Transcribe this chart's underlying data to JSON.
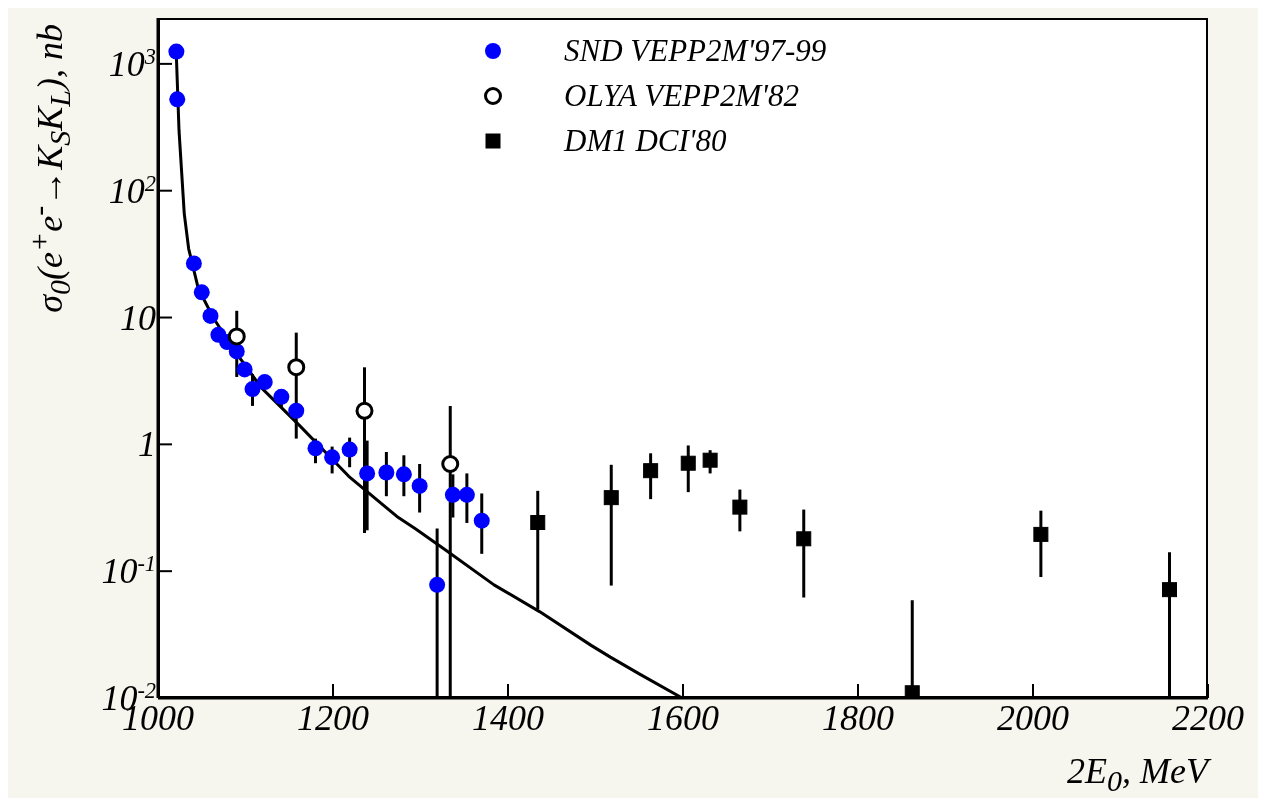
{
  "chart_data": {
    "type": "scatter",
    "xlabel": "2E$_{0}$,  MeV",
    "ylabel": "σ$_{0}$(e$^{+}$e$^{-}$→K$_{S}$K$_{L}$),  nb",
    "log": "y",
    "xlim": [
      1000,
      2200
    ],
    "xticks": [
      1000,
      1200,
      1400,
      1600,
      1800,
      2000,
      2200
    ],
    "ylim": [
      0.01,
      2300
    ],
    "yticks": [
      {
        "value": 0.01,
        "label": "10$^{-2}$"
      },
      {
        "value": 0.1,
        "label": "10$^{-1}$"
      },
      {
        "value": 1,
        "label": "1"
      },
      {
        "value": 10,
        "label": "10"
      },
      {
        "value": 100,
        "label": "10$^{2}$"
      },
      {
        "value": 1000,
        "label": "10$^{3}$"
      }
    ],
    "legend": "top",
    "series": [
      {
        "name": "SND VEPP2M'97-99",
        "marker": "circle",
        "color": "#0000ff",
        "x": [
          1021,
          1022,
          1041,
          1050,
          1060,
          1069,
          1079,
          1090,
          1099,
          1108,
          1122,
          1141,
          1158,
          1180,
          1199,
          1219,
          1239,
          1261,
          1281,
          1299,
          1319,
          1337,
          1353,
          1370
        ],
        "values": [
          1250,
          525,
          26.7,
          15.8,
          10.3,
          7.3,
          6.4,
          5.4,
          3.9,
          2.73,
          3.1,
          2.37,
          1.84,
          0.93,
          0.79,
          0.91,
          0.59,
          0.6,
          0.58,
          0.47,
          0.078,
          0.4,
          0.4,
          0.25
        ],
        "errors": [
          null,
          null,
          null,
          null,
          null,
          null,
          null,
          null,
          null,
          [
            2.01,
            3.58
          ],
          null,
          [
            1.94,
            2.73
          ],
          null,
          [
            0.71,
            1.11
          ],
          [
            0.59,
            0.96
          ],
          [
            0.66,
            1.13
          ],
          [
            0.21,
            1.07
          ],
          [
            0.39,
            0.87
          ],
          [
            0.39,
            0.82
          ],
          [
            0.29,
            0.7
          ],
          [
            0.01,
            0.217
          ],
          [
            0.265,
            0.58
          ],
          [
            0.24,
            0.59
          ],
          [
            0.137,
            0.41
          ]
        ]
      },
      {
        "name": "OLYA VEPP2M'82",
        "marker": "circle",
        "color": "#ffffff",
        "x": [
          1090,
          1158,
          1236,
          1334
        ],
        "values": [
          7.1,
          4.06,
          1.84,
          0.7
        ],
        "errors": [
          [
            3.4,
            11.3
          ],
          [
            1.11,
            7.6
          ],
          [
            0.2,
            4.05
          ],
          [
            0.01,
            2.01
          ]
        ]
      },
      {
        "name": "DM1 DCI'80",
        "marker": "square",
        "color": "#000000",
        "x": [
          1434,
          1518,
          1563,
          1606,
          1631,
          1665,
          1738,
          1862,
          2009,
          2156
        ],
        "values": [
          0.242,
          0.38,
          0.62,
          0.71,
          0.75,
          0.32,
          0.18,
          0.011,
          0.195,
          0.0715
        ],
        "errors": [
          [
            0.05,
            0.43
          ],
          [
            0.077,
            0.69
          ],
          [
            0.37,
            0.85
          ],
          [
            0.42,
            0.98
          ],
          [
            0.59,
            0.9
          ],
          [
            0.206,
            0.44
          ],
          [
            0.062,
            0.306
          ],
          [
            0.01,
            0.059
          ],
          [
            0.09,
            0.3
          ],
          [
            0.01,
            0.141
          ]
        ]
      },
      {
        "type": "line",
        "color": "#000000",
        "line_style": "solid",
        "marker": "none",
        "x": [
          1021,
          1024,
          1030,
          1035,
          1046,
          1063,
          1085,
          1118,
          1163,
          1218,
          1273,
          1295,
          1329,
          1384,
          1436,
          1495,
          1517,
          1550,
          1598
        ],
        "values": [
          1150,
          300,
          66,
          35,
          17,
          10,
          5.8,
          2.8,
          1.38,
          0.56,
          0.27,
          0.214,
          0.146,
          0.078,
          0.048,
          0.026,
          0.021,
          0.0155,
          0.0101
        ]
      }
    ]
  }
}
